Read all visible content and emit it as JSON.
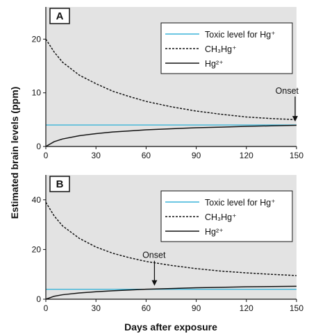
{
  "chart_data": {
    "type": "line",
    "ylabel": "Estimated brain levels (ppm)",
    "xlabel": "Days after exposure",
    "legend_placement": "top-right",
    "colors": {
      "background": "#e3e3e3",
      "toxic": "#3ab4d8",
      "ch3hg": "#111111",
      "hg2": "#111111"
    },
    "xlim": [
      0,
      150
    ],
    "xticks": [
      "0",
      "30",
      "60",
      "90",
      "120",
      "150"
    ],
    "series_names": {
      "toxic": "Toxic level for Hg⁺",
      "ch3hg": "CH₃Hg⁺",
      "hg2": "Hg²⁺"
    },
    "panels": [
      {
        "label": "A",
        "ylim": [
          0,
          26
        ],
        "yticks": [
          "0",
          "10",
          "20"
        ],
        "annotation": {
          "text": "Onset",
          "x": 150,
          "y": 4
        },
        "series": [
          {
            "key": "toxic",
            "style": "solid",
            "x": [
              0,
              150
            ],
            "y": [
              4,
              4
            ]
          },
          {
            "key": "ch3hg",
            "style": "dotted",
            "x": [
              0,
              5,
              10,
              20,
              30,
              40,
              50,
              60,
              75,
              90,
              105,
              120,
              135,
              150
            ],
            "y": [
              20,
              17.6,
              15.7,
              13.3,
              11.7,
              10.3,
              9.3,
              8.4,
              7.4,
              6.6,
              6.0,
              5.5,
              5.2,
              5.0
            ]
          },
          {
            "key": "hg2",
            "style": "solid",
            "x": [
              0,
              5,
              10,
              20,
              30,
              40,
              50,
              60,
              75,
              90,
              105,
              120,
              135,
              150
            ],
            "y": [
              0,
              0.9,
              1.4,
              2.0,
              2.4,
              2.7,
              2.9,
              3.1,
              3.3,
              3.5,
              3.6,
              3.75,
              3.85,
              3.95
            ]
          }
        ]
      },
      {
        "label": "B",
        "ylim": [
          0,
          50
        ],
        "yticks": [
          "0",
          "20",
          "40"
        ],
        "annotation": {
          "text": "Onset",
          "x": 65,
          "y": 4
        },
        "series": [
          {
            "key": "toxic",
            "style": "solid",
            "x": [
              0,
              150
            ],
            "y": [
              4,
              4
            ]
          },
          {
            "key": "ch3hg",
            "style": "dotted",
            "x": [
              0,
              5,
              10,
              20,
              30,
              40,
              50,
              60,
              75,
              90,
              105,
              120,
              135,
              150
            ],
            "y": [
              39,
              33.5,
              29.5,
              24.5,
              21.0,
              18.5,
              16.7,
              15.2,
              13.6,
              12.3,
              11.3,
              10.6,
              10.0,
              9.5
            ]
          },
          {
            "key": "hg2",
            "style": "solid",
            "x": [
              0,
              5,
              10,
              20,
              30,
              40,
              50,
              60,
              75,
              90,
              105,
              120,
              135,
              150
            ],
            "y": [
              0,
              1.2,
              1.8,
              2.5,
              3.0,
              3.4,
              3.7,
              4.0,
              4.3,
              4.6,
              4.8,
              5.0,
              5.1,
              5.2
            ]
          }
        ]
      }
    ]
  }
}
